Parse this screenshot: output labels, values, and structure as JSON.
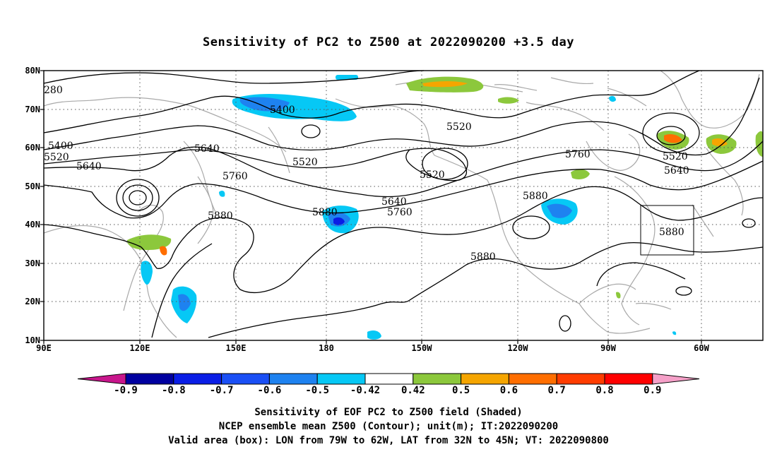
{
  "title": "Sensitivity of PC2 to Z500 at 2022090200 +3.5 day",
  "lat_labels": [
    "80N",
    "70N",
    "60N",
    "50N",
    "40N",
    "30N",
    "20N",
    "10N"
  ],
  "lon_labels": [
    "90E",
    "120E",
    "150E",
    "180",
    "150W",
    "120W",
    "90W",
    "60W"
  ],
  "contour_labels": [
    {
      "text": "280"
    },
    {
      "text": "5400"
    },
    {
      "text": "5400"
    },
    {
      "text": "5520"
    },
    {
      "text": "5640"
    },
    {
      "text": "5640"
    },
    {
      "text": "5520"
    },
    {
      "text": "5520"
    },
    {
      "text": "5520"
    },
    {
      "text": "5760"
    },
    {
      "text": "5880"
    },
    {
      "text": "5880"
    },
    {
      "text": "5640"
    },
    {
      "text": "5760"
    },
    {
      "text": "5760"
    },
    {
      "text": "5880"
    },
    {
      "text": "5520"
    },
    {
      "text": "5640"
    },
    {
      "text": "5880"
    },
    {
      "text": "5880"
    }
  ],
  "colorbar": {
    "labels": [
      "-0.9",
      "-0.8",
      "-0.7",
      "-0.6",
      "-0.5",
      "-0.42",
      "0.42",
      "0.5",
      "0.6",
      "0.7",
      "0.8",
      "0.9"
    ],
    "colors": [
      "#0000a0",
      "#0a1ee6",
      "#1a4ff5",
      "#1e82f0",
      "#06c8f5",
      "#ffffff",
      "#8cc83c",
      "#f5a500",
      "#ff6e00",
      "#ff3c00",
      "#ff0000"
    ],
    "low_end_color": "#c8168c",
    "high_end_color": "#f5a0c8"
  },
  "caption": {
    "line1": "Sensitivity of EOF PC2 to Z500 field (Shaded)",
    "line2": "NCEP ensemble mean Z500 (Contour); unit(m); IT:2022090200",
    "line3": "Valid area (box): LON from 79W to 62W, LAT from 32N to 45N; VT: 2022090800"
  }
}
